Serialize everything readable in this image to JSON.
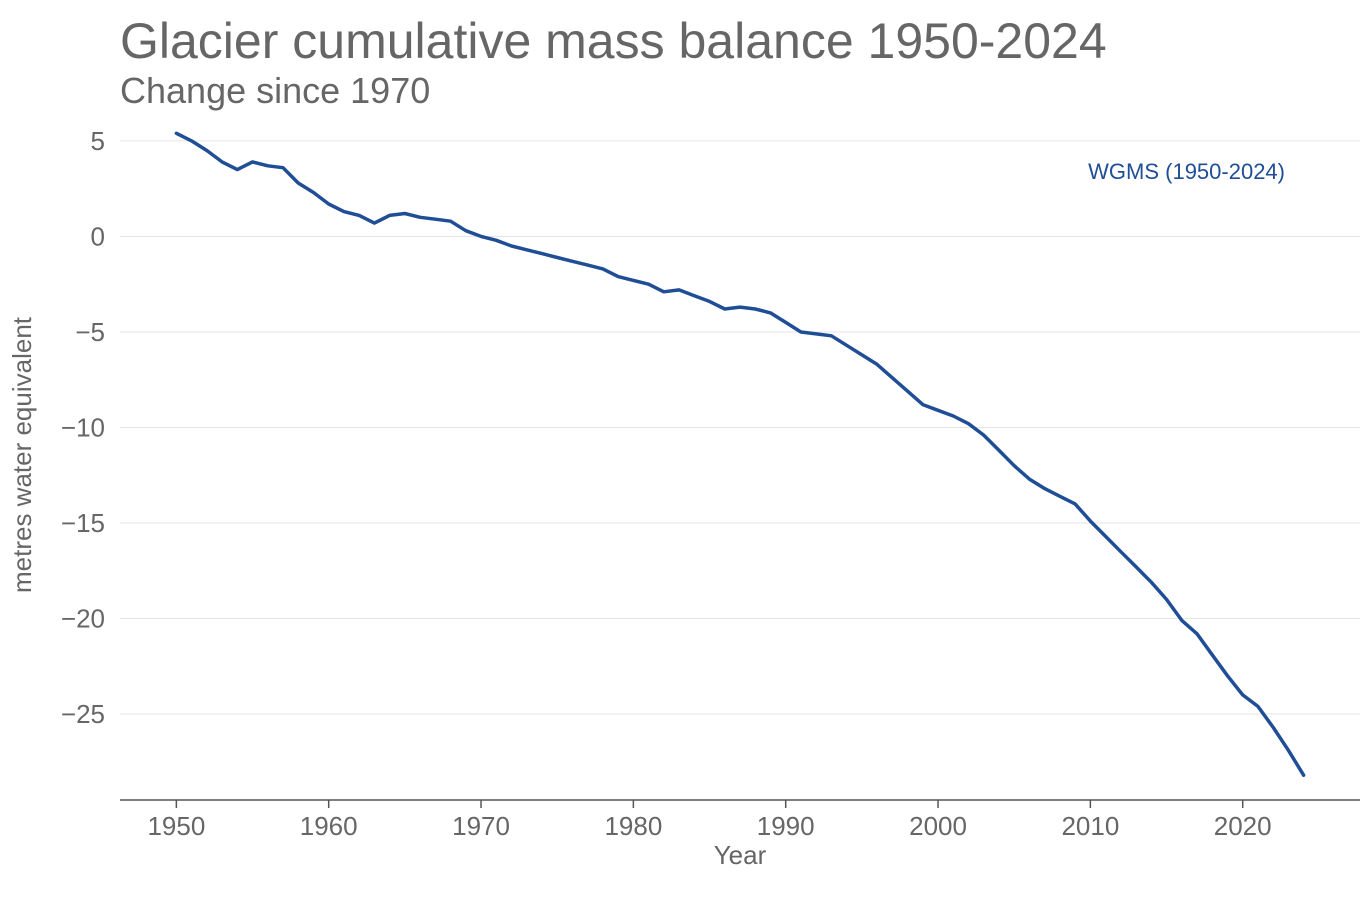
{
  "colors": {
    "series": "#1f4e96",
    "text": "#666666",
    "grid": "#e5e5e5",
    "axis": "#555555"
  },
  "chart_data": {
    "type": "line",
    "title": "Glacier cumulative mass balance 1950-2024",
    "subtitle": "Change since 1970",
    "xlabel": "Year",
    "ylabel": "metres water equivalent",
    "xlim": [
      1946.3,
      2027.7
    ],
    "ylim": [
      -29.5,
      6.2
    ],
    "xticks": [
      1950,
      1960,
      1970,
      1980,
      1990,
      2000,
      2010,
      2020
    ],
    "yticks": [
      5,
      0,
      -5,
      -10,
      -15,
      -20,
      -25
    ],
    "ytick_labels": [
      "5",
      "0",
      "−5",
      "−10",
      "−15",
      "−20",
      "−25"
    ],
    "grid": true,
    "legend_position": "top-right",
    "series": [
      {
        "name": "WGMS (1950-2024)",
        "x": [
          1950,
          1951,
          1952,
          1953,
          1954,
          1955,
          1956,
          1957,
          1958,
          1959,
          1960,
          1961,
          1962,
          1963,
          1964,
          1965,
          1966,
          1967,
          1968,
          1969,
          1970,
          1971,
          1972,
          1973,
          1974,
          1975,
          1976,
          1977,
          1978,
          1979,
          1980,
          1981,
          1982,
          1983,
          1984,
          1985,
          1986,
          1987,
          1988,
          1989,
          1990,
          1991,
          1992,
          1993,
          1994,
          1995,
          1996,
          1997,
          1998,
          1999,
          2000,
          2001,
          2002,
          2003,
          2004,
          2005,
          2006,
          2007,
          2008,
          2009,
          2010,
          2011,
          2012,
          2013,
          2014,
          2015,
          2016,
          2017,
          2018,
          2019,
          2020,
          2021,
          2022,
          2023,
          2024
        ],
        "values": [
          5.4,
          5.0,
          4.5,
          3.9,
          3.5,
          3.9,
          3.7,
          3.6,
          2.8,
          2.3,
          1.7,
          1.3,
          1.1,
          0.7,
          1.1,
          1.2,
          1.0,
          0.9,
          0.8,
          0.3,
          0.0,
          -0.2,
          -0.5,
          -0.7,
          -0.9,
          -1.1,
          -1.3,
          -1.5,
          -1.7,
          -2.1,
          -2.3,
          -2.5,
          -2.9,
          -2.8,
          -3.1,
          -3.4,
          -3.8,
          -3.7,
          -3.8,
          -4.0,
          -4.5,
          -5.0,
          -5.1,
          -5.2,
          -5.7,
          -6.2,
          -6.7,
          -7.4,
          -8.1,
          -8.8,
          -9.1,
          -9.4,
          -9.8,
          -10.4,
          -11.2,
          -12.0,
          -12.7,
          -13.2,
          -13.6,
          -14.0,
          -14.9,
          -15.7,
          -16.5,
          -17.3,
          -18.1,
          -19.0,
          -20.1,
          -20.8,
          -21.9,
          -23.0,
          -24.0,
          -24.6,
          -25.7,
          -26.9,
          -28.2
        ]
      }
    ]
  }
}
